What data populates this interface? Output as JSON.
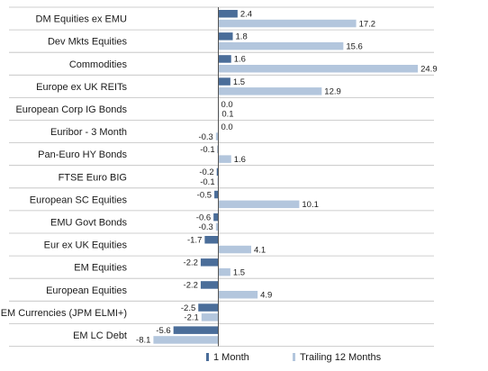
{
  "chart_data": {
    "type": "bar",
    "orientation": "horizontal",
    "categories": [
      "DM Equities ex EMU",
      "Dev Mkts Equities",
      "Commodities",
      "Europe ex UK REITs",
      "European Corp IG Bonds",
      "Euribor - 3 Month",
      "Pan-Euro HY Bonds",
      "FTSE Euro BIG",
      "European SC Equities",
      "EMU Govt Bonds",
      "Eur ex UK Equities",
      "EM Equities",
      "European Equities",
      "EM Currencies (JPM ELMI+)",
      "EM LC Debt"
    ],
    "series": [
      {
        "name": "1 Month",
        "color": "#4a6d99",
        "values": [
          2.4,
          1.8,
          1.6,
          1.5,
          0.0,
          0.0,
          -0.1,
          -0.2,
          -0.5,
          -0.6,
          -1.7,
          -2.2,
          -2.2,
          -2.5,
          -5.6
        ],
        "labels": [
          "2.4",
          "1.8",
          "1.6",
          "1.5",
          "0.0",
          "0.0",
          "-0.1",
          "-0.2",
          "-0.5",
          "-0.6",
          "-1.7",
          "-2.2",
          "-2.2",
          "-2.5",
          "-5.6"
        ]
      },
      {
        "name": "Trailing 12 Months",
        "color": "#b3c6dd",
        "values": [
          17.2,
          15.6,
          24.9,
          12.9,
          0.1,
          -0.3,
          1.6,
          -0.1,
          10.1,
          -0.3,
          4.1,
          1.5,
          4.9,
          -2.1,
          -8.1
        ],
        "labels": [
          "17.2",
          "15.6",
          "24.9",
          "12.9",
          "0.1",
          "-0.3",
          "1.6",
          "-0.1",
          "10.1",
          "-0.3",
          "4.1",
          "1.5",
          "4.9",
          "-2.1",
          "-8.1"
        ]
      }
    ],
    "xlim": [
      -8.1,
      24.9
    ],
    "grid": "horizontal separators",
    "legend": "bottom",
    "baseline_color": "#555555",
    "separator_color": "#bfbfbf"
  }
}
